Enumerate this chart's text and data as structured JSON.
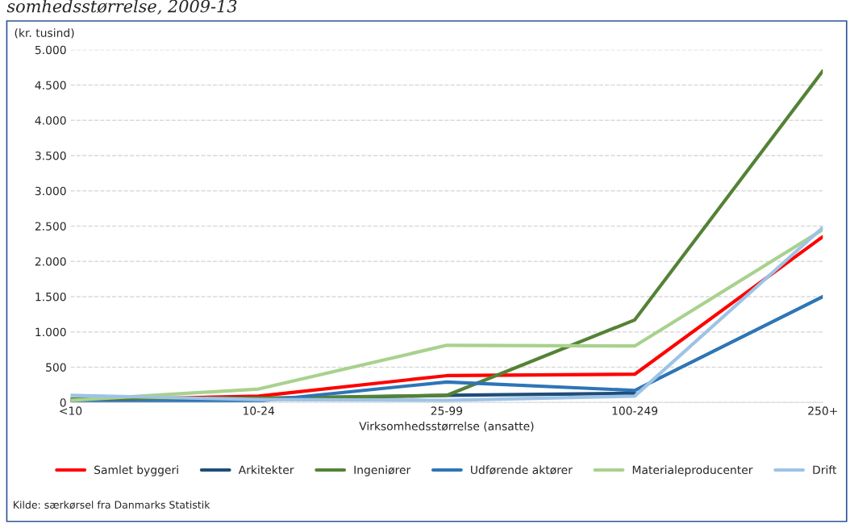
{
  "chart_data": {
    "type": "line",
    "title": "somhedsstørrelse, 2009-13",
    "ylabel": "(kr. tusind)",
    "xlabel": "Virksomhedsstørrelse (ansatte)",
    "categories": [
      "<10",
      "10-24",
      "25-99",
      "100-249",
      "250+"
    ],
    "series": [
      {
        "name": "Samlet byggeri",
        "color": "#ff0000",
        "values": [
          30,
          90,
          380,
          400,
          2350
        ]
      },
      {
        "name": "Arkitekter",
        "color": "#1f4e79",
        "values": [
          null,
          50,
          100,
          130,
          null
        ]
      },
      {
        "name": "Ingeniører",
        "color": "#548235",
        "values": [
          50,
          60,
          100,
          1170,
          4700
        ]
      },
      {
        "name": "Udførende aktører",
        "color": "#2e75b6",
        "values": [
          0,
          20,
          290,
          170,
          1500
        ]
      },
      {
        "name": "Materialeproducenter",
        "color": "#a9d18e",
        "values": [
          30,
          190,
          810,
          800,
          2450
        ]
      },
      {
        "name": "Drift",
        "color": "#9dc3e6",
        "values": [
          100,
          40,
          30,
          90,
          2480
        ]
      }
    ],
    "ylim": [
      0,
      5000
    ],
    "yticks": [
      {
        "value": 0,
        "label": "0"
      },
      {
        "value": 500,
        "label": "500"
      },
      {
        "value": 1000,
        "label": "1.000"
      },
      {
        "value": 1500,
        "label": "1.500"
      },
      {
        "value": 2000,
        "label": "2.000"
      },
      {
        "value": 2500,
        "label": "2.500"
      },
      {
        "value": 3000,
        "label": "3.000"
      },
      {
        "value": 3500,
        "label": "3.500"
      },
      {
        "value": 4000,
        "label": "4.000"
      },
      {
        "value": 4500,
        "label": "4.500"
      },
      {
        "value": 5000,
        "label": "5.000"
      }
    ],
    "grid": "y",
    "legend": "bottom",
    "marker": "none",
    "line_style": "solid",
    "annotations": [
      "Kilde: særkørsel fra Danmarks Statistik"
    ]
  }
}
